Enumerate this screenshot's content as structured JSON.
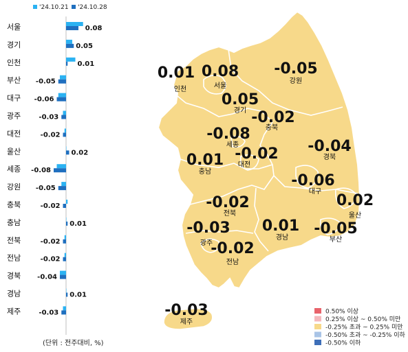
{
  "legend_series": [
    {
      "name": "'24.10.21",
      "color": "#2BB2F2"
    },
    {
      "name": "'24.10.28",
      "color": "#1F6FBF"
    }
  ],
  "unit_note": "(단위 : 전주대비, %)",
  "chart_data": {
    "type": "bar",
    "orientation": "horizontal",
    "categories": [
      "서울",
      "경기",
      "인천",
      "부산",
      "대구",
      "광주",
      "대전",
      "울산",
      "세종",
      "강원",
      "충북",
      "충남",
      "전북",
      "전남",
      "경북",
      "경남",
      "제주"
    ],
    "series": [
      {
        "name": "'24.10.21",
        "values": [
          0.11,
          0.04,
          0.06,
          -0.04,
          -0.05,
          -0.02,
          -0.01,
          0.0,
          -0.06,
          -0.03,
          0.01,
          0.0,
          -0.01,
          -0.01,
          -0.04,
          0.0,
          -0.02
        ]
      },
      {
        "name": "'24.10.28",
        "values": [
          0.08,
          0.05,
          0.01,
          -0.05,
          -0.06,
          -0.03,
          -0.02,
          0.02,
          -0.08,
          -0.05,
          -0.02,
          0.01,
          -0.02,
          -0.02,
          -0.04,
          0.01,
          -0.03
        ]
      }
    ],
    "value_labels": [
      "0.08",
      "0.05",
      "0.01",
      "-0.05",
      "-0.06",
      "-0.03",
      "-0.02",
      "0.02",
      "-0.08",
      "-0.05",
      "-0.02",
      "0.01",
      "-0.02",
      "-0.02",
      "-0.04",
      "0.01",
      "-0.03"
    ]
  },
  "map": {
    "regions": [
      {
        "name": "인천",
        "value": "0.01"
      },
      {
        "name": "서울",
        "value": "0.08"
      },
      {
        "name": "강원",
        "value": "-0.05"
      },
      {
        "name": "경기",
        "value": "0.05"
      },
      {
        "name": "충북",
        "value": "-0.02"
      },
      {
        "name": "세종",
        "value": "-0.08"
      },
      {
        "name": "대전",
        "value": "-0.02"
      },
      {
        "name": "충남",
        "value": "0.01"
      },
      {
        "name": "경북",
        "value": "-0.04"
      },
      {
        "name": "대구",
        "value": "-0.06"
      },
      {
        "name": "울산",
        "value": "0.02"
      },
      {
        "name": "전북",
        "value": "-0.02"
      },
      {
        "name": "광주",
        "value": "-0.03"
      },
      {
        "name": "경남",
        "value": "0.01"
      },
      {
        "name": "부산",
        "value": "-0.05"
      },
      {
        "name": "전남",
        "value": "-0.02"
      },
      {
        "name": "제주",
        "value": "-0.03"
      }
    ],
    "fill_color": "#F7D98A",
    "legend": [
      {
        "label": "0.50% 이상",
        "color": "#E8636B"
      },
      {
        "label": "0.25% 이상 ~ 0.50% 미만",
        "color": "#F4B8BC"
      },
      {
        "label": "-0.25% 초과 ~ 0.25% 미만",
        "color": "#F7D98A"
      },
      {
        "label": "-0.50% 초과 ~ -0.25% 이하",
        "color": "#A9C4E6"
      },
      {
        "label": "-0.50% 이하",
        "color": "#3E6FB8"
      }
    ]
  }
}
